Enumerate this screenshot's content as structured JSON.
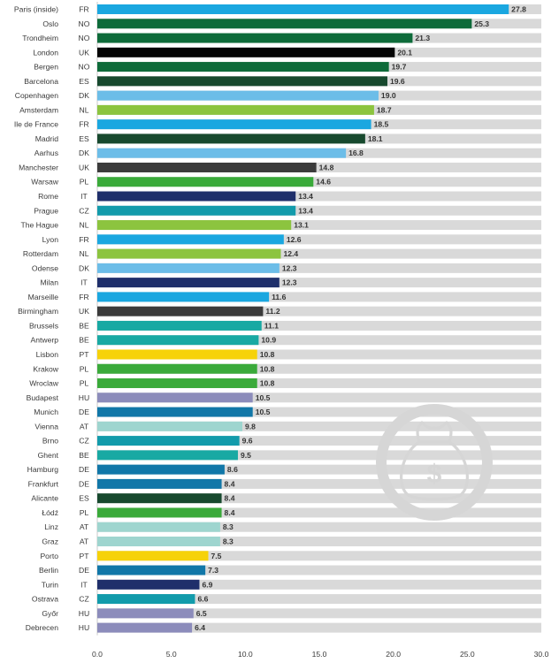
{
  "chart_data": {
    "type": "bar",
    "orientation": "horizontal",
    "title": "",
    "xlabel": "",
    "ylabel": "",
    "xlim": [
      0,
      30
    ],
    "x_ticks": [
      "0.0",
      "5.0",
      "10.0",
      "15.0",
      "20.0",
      "25.0",
      "30.0"
    ],
    "legend": "none",
    "grid": false,
    "background_track_color": "#d9d9d9",
    "icon": "money-bag-icon",
    "country_colors": {
      "FR": "#1aa7e0",
      "NO": "#0e6b3a",
      "UK": "#3b3b3b",
      "ES": "#17492e",
      "DK": "#6cbde8",
      "NL": "#8cc43f",
      "PL": "#3aaa3a",
      "IT": "#1f2f6b",
      "CZ": "#129bab",
      "BE": "#18a9a3",
      "PT": "#f6d20a",
      "HU": "#8c8cbb",
      "DE": "#1177a8",
      "AT": "#9ed5cf"
    },
    "rows": [
      {
        "city": "Paris (inside)",
        "country": "FR",
        "value": 27.8,
        "label": "27.8"
      },
      {
        "city": "Oslo",
        "country": "NO",
        "value": 25.3,
        "label": "25.3"
      },
      {
        "city": "Trondheim",
        "country": "NO",
        "value": 21.3,
        "label": "21.3"
      },
      {
        "city": "London",
        "country": "UK",
        "value": 20.1,
        "label": "20.1",
        "color": "#050505"
      },
      {
        "city": "Bergen",
        "country": "NO",
        "value": 19.7,
        "label": "19.7"
      },
      {
        "city": "Barcelona",
        "country": "ES",
        "value": 19.6,
        "label": "19.6"
      },
      {
        "city": "Copenhagen",
        "country": "DK",
        "value": 19.0,
        "label": "19.0"
      },
      {
        "city": "Amsterdam",
        "country": "NL",
        "value": 18.7,
        "label": "18.7"
      },
      {
        "city": "Ile de France",
        "country": "FR",
        "value": 18.5,
        "label": "18.5"
      },
      {
        "city": "Madrid",
        "country": "ES",
        "value": 18.1,
        "label": "18.1"
      },
      {
        "city": "Aarhus",
        "country": "DK",
        "value": 16.8,
        "label": "16.8"
      },
      {
        "city": "Manchester",
        "country": "UK",
        "value": 14.8,
        "label": "14.8"
      },
      {
        "city": "Warsaw",
        "country": "PL",
        "value": 14.6,
        "label": "14.6"
      },
      {
        "city": "Rome",
        "country": "IT",
        "value": 13.4,
        "label": "13.4"
      },
      {
        "city": "Prague",
        "country": "CZ",
        "value": 13.4,
        "label": "13.4"
      },
      {
        "city": "The Hague",
        "country": "NL",
        "value": 13.1,
        "label": "13.1"
      },
      {
        "city": "Lyon",
        "country": "FR",
        "value": 12.6,
        "label": "12.6"
      },
      {
        "city": "Rotterdam",
        "country": "NL",
        "value": 12.4,
        "label": "12.4"
      },
      {
        "city": "Odense",
        "country": "DK",
        "value": 12.3,
        "label": "12.3"
      },
      {
        "city": "Milan",
        "country": "IT",
        "value": 12.3,
        "label": "12.3"
      },
      {
        "city": "Marseille",
        "country": "FR",
        "value": 11.6,
        "label": "11.6"
      },
      {
        "city": "Birmingham",
        "country": "UK",
        "value": 11.2,
        "label": "11.2"
      },
      {
        "city": "Brussels",
        "country": "BE",
        "value": 11.1,
        "label": "11.1"
      },
      {
        "city": "Antwerp",
        "country": "BE",
        "value": 10.9,
        "label": "10.9"
      },
      {
        "city": "Lisbon",
        "country": "PT",
        "value": 10.8,
        "label": "10.8"
      },
      {
        "city": "Krakow",
        "country": "PL",
        "value": 10.8,
        "label": "10.8"
      },
      {
        "city": "Wroclaw",
        "country": "PL",
        "value": 10.8,
        "label": "10.8"
      },
      {
        "city": "Budapest",
        "country": "HU",
        "value": 10.5,
        "label": "10.5"
      },
      {
        "city": "Munich",
        "country": "DE",
        "value": 10.5,
        "label": "10.5"
      },
      {
        "city": "Vienna",
        "country": "AT",
        "value": 9.8,
        "label": "9.8"
      },
      {
        "city": "Brno",
        "country": "CZ",
        "value": 9.6,
        "label": "9.6"
      },
      {
        "city": "Ghent",
        "country": "BE",
        "value": 9.5,
        "label": "9.5"
      },
      {
        "city": "Hamburg",
        "country": "DE",
        "value": 8.6,
        "label": "8.6"
      },
      {
        "city": "Frankfurt",
        "country": "DE",
        "value": 8.4,
        "label": "8.4"
      },
      {
        "city": "Alicante",
        "country": "ES",
        "value": 8.4,
        "label": "8.4"
      },
      {
        "city": "Łódź",
        "country": "PL",
        "value": 8.4,
        "label": "8.4"
      },
      {
        "city": "Linz",
        "country": "AT",
        "value": 8.3,
        "label": "8.3"
      },
      {
        "city": "Graz",
        "country": "AT",
        "value": 8.3,
        "label": "8.3"
      },
      {
        "city": "Porto",
        "country": "PT",
        "value": 7.5,
        "label": "7.5"
      },
      {
        "city": "Berlin",
        "country": "DE",
        "value": 7.3,
        "label": "7.3"
      },
      {
        "city": "Turin",
        "country": "IT",
        "value": 6.9,
        "label": "6.9"
      },
      {
        "city": "Ostrava",
        "country": "CZ",
        "value": 6.6,
        "label": "6.6"
      },
      {
        "city": "Győr",
        "country": "HU",
        "value": 6.5,
        "label": "6.5"
      },
      {
        "city": "Debrecen",
        "country": "HU",
        "value": 6.4,
        "label": "6.4"
      }
    ]
  }
}
